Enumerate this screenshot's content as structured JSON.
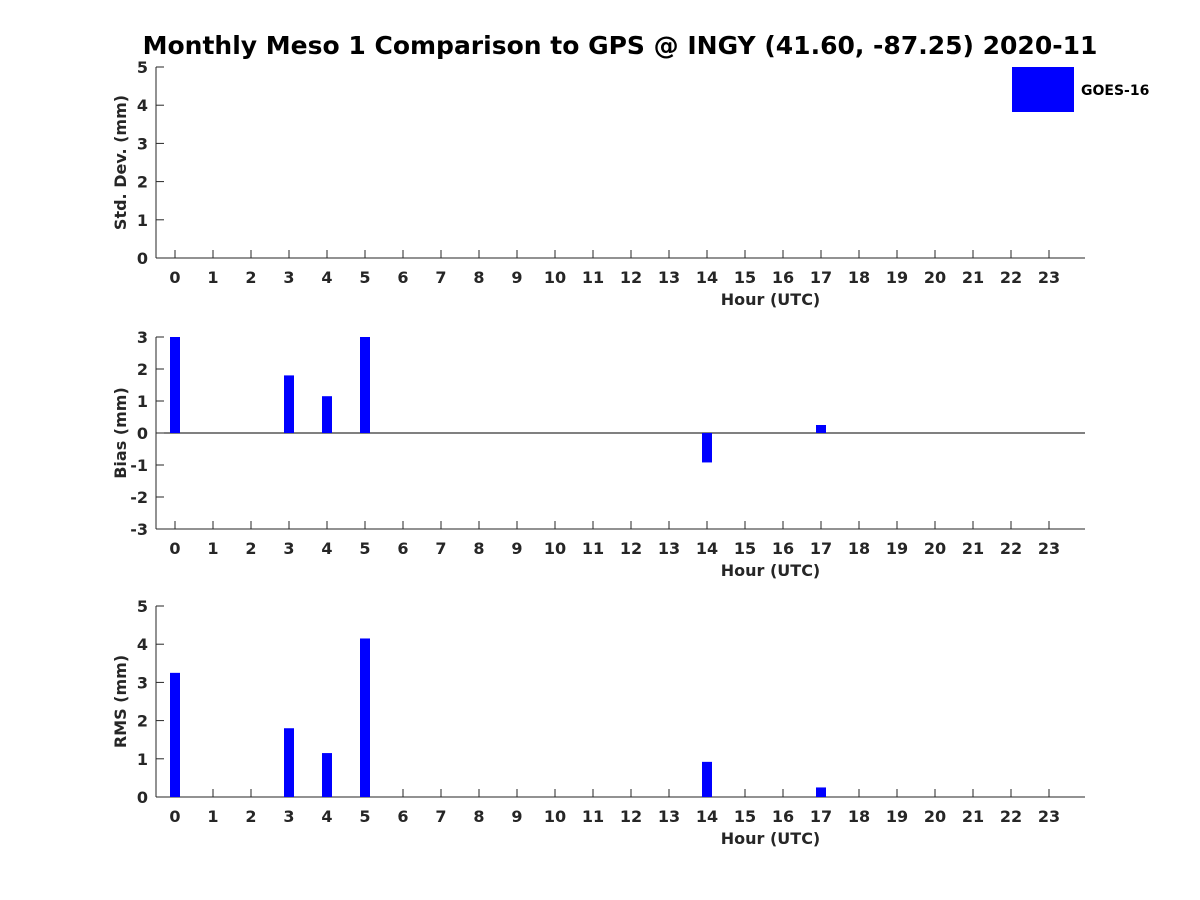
{
  "title": "Monthly Meso 1 Comparison to GPS @ INGY (41.60, -87.25) 2020-11",
  "bar_color": "#0000ff",
  "chart_data": [
    {
      "type": "bar",
      "categories": [
        "0",
        "1",
        "2",
        "3",
        "4",
        "5",
        "6",
        "7",
        "8",
        "9",
        "10",
        "11",
        "12",
        "13",
        "14",
        "15",
        "16",
        "17",
        "18",
        "19",
        "20",
        "21",
        "22",
        "23"
      ],
      "series": [
        {
          "name": "GOES-16",
          "values": [
            null,
            null,
            null,
            null,
            null,
            null,
            null,
            null,
            null,
            null,
            null,
            null,
            null,
            null,
            null,
            null,
            null,
            null,
            null,
            null,
            null,
            null,
            null,
            null
          ]
        }
      ],
      "xlabel": "Hour (UTC)",
      "ylabel": "Std. Dev. (mm)",
      "ylim": [
        0,
        5
      ],
      "yticks": [
        "0",
        "1",
        "2",
        "3",
        "4",
        "5"
      ],
      "legend": "top-right"
    },
    {
      "type": "bar",
      "categories": [
        "0",
        "1",
        "2",
        "3",
        "4",
        "5",
        "6",
        "7",
        "8",
        "9",
        "10",
        "11",
        "12",
        "13",
        "14",
        "15",
        "16",
        "17",
        "18",
        "19",
        "20",
        "21",
        "22",
        "23"
      ],
      "series": [
        {
          "name": "GOES-16",
          "values": [
            3.0,
            null,
            null,
            1.8,
            1.15,
            3.0,
            null,
            null,
            null,
            null,
            null,
            null,
            null,
            null,
            -0.92,
            null,
            null,
            0.25,
            null,
            null,
            null,
            null,
            null,
            null
          ]
        }
      ],
      "xlabel": "Hour (UTC)",
      "ylabel": "Bias (mm)",
      "ylim": [
        -3,
        3
      ],
      "yticks": [
        "-3",
        "-2",
        "-1",
        "0",
        "1",
        "2",
        "3"
      ]
    },
    {
      "type": "bar",
      "categories": [
        "0",
        "1",
        "2",
        "3",
        "4",
        "5",
        "6",
        "7",
        "8",
        "9",
        "10",
        "11",
        "12",
        "13",
        "14",
        "15",
        "16",
        "17",
        "18",
        "19",
        "20",
        "21",
        "22",
        "23"
      ],
      "series": [
        {
          "name": "GOES-16",
          "values": [
            3.25,
            null,
            null,
            1.8,
            1.15,
            4.15,
            null,
            null,
            null,
            null,
            null,
            null,
            null,
            null,
            0.92,
            null,
            null,
            0.25,
            null,
            null,
            null,
            null,
            null,
            null
          ]
        }
      ],
      "xlabel": "Hour (UTC)",
      "ylabel": "RMS (mm)",
      "ylim": [
        0,
        5
      ],
      "yticks": [
        "0",
        "1",
        "2",
        "3",
        "4",
        "5"
      ]
    }
  ]
}
